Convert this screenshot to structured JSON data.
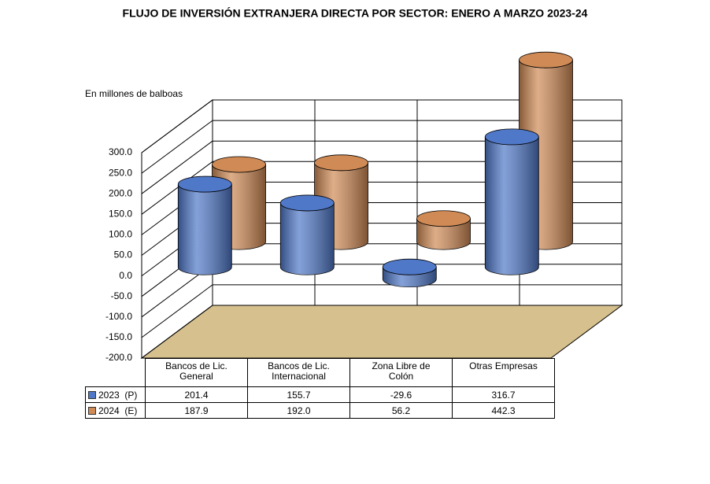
{
  "chart_data": {
    "type": "cylinder",
    "title": "FLUJO DE INVERSIÓN EXTRANJERA DIRECTA POR SECTOR: ENERO A MARZO 2023-24",
    "y_label": "En millones de balboas",
    "categories": [
      "Bancos de Lic.\nGeneral",
      "Bancos de Lic.\nInternacional",
      "Zona Libre de\nColón",
      "Otras Empresas"
    ],
    "series": [
      {
        "name": "2023  (P)",
        "color": "#4f78c8",
        "values": [
          201.4,
          155.7,
          -29.6,
          316.7
        ],
        "value_labels": [
          "201.4",
          "155.7",
          "-29.6",
          "316.7"
        ]
      },
      {
        "name": "2024  (E)",
        "color": "#cf8a55",
        "values": [
          187.9,
          192.0,
          56.2,
          442.3
        ],
        "value_labels": [
          "187.9",
          "192.0",
          "56.2",
          "442.3"
        ]
      }
    ],
    "ylim": [
      -200,
      300
    ],
    "yticks": [
      {
        "value": -200,
        "label": "-200.0"
      },
      {
        "value": -150,
        "label": "-150.0"
      },
      {
        "value": -100,
        "label": "-100.0"
      },
      {
        "value": -50,
        "label": "-50.0"
      },
      {
        "value": 0,
        "label": "0.0"
      },
      {
        "value": 50,
        "label": "50.0"
      },
      {
        "value": 100,
        "label": "100.0"
      },
      {
        "value": 150,
        "label": "150.0"
      },
      {
        "value": 200,
        "label": "200.0"
      },
      {
        "value": 250,
        "label": "250.0"
      },
      {
        "value": 300,
        "label": "300.0"
      }
    ],
    "grid": true
  }
}
